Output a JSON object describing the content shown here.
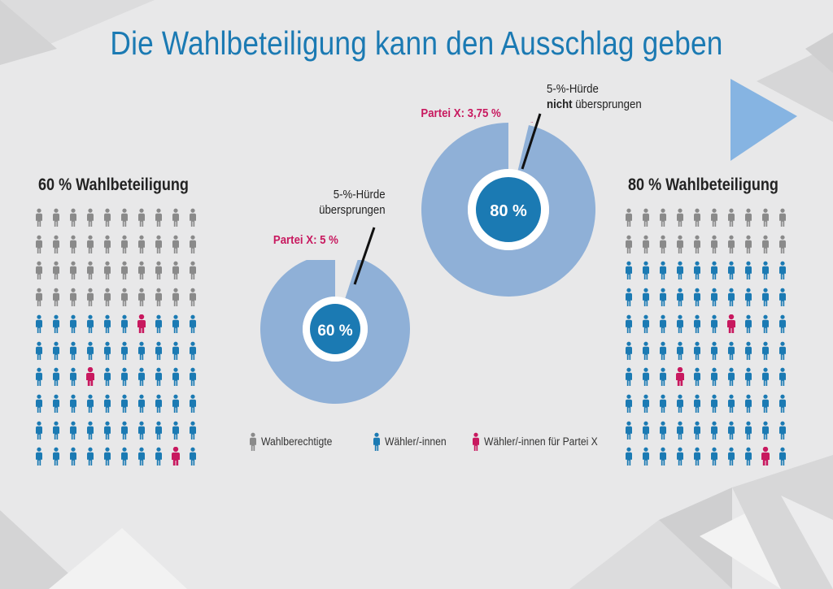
{
  "title": "Die Wahlbeteiligung kann den Ausschlag geben",
  "colors": {
    "eligible": "#8a8a8a",
    "voter": "#1b7ab3",
    "party_x": "#c8195f",
    "ring": "#8fb0d7",
    "center": "#1b7ab3"
  },
  "chart_data": [
    {
      "type": "pictogram",
      "title": "60 % Wahlbeteiligung",
      "grid": {
        "rows": 10,
        "cols": 10
      },
      "total": 100,
      "eligible_non_voters": 40,
      "voters": 60,
      "party_x_voters": 3,
      "party_x_positions": [
        [
          4,
          6
        ],
        [
          6,
          3
        ],
        [
          9,
          8
        ]
      ]
    },
    {
      "type": "pie",
      "turnout_label": "60 %",
      "slices": [
        {
          "label": "Partei X: 5 %",
          "value": 5
        },
        {
          "label": "",
          "value": 95
        }
      ],
      "annotation": {
        "line1": "5-%-Hürde",
        "line2": "übersprungen"
      }
    },
    {
      "type": "pie",
      "turnout_label": "80 %",
      "slices": [
        {
          "label": "Partei X: 3,75 %",
          "value": 3.75
        },
        {
          "label": "",
          "value": 96.25
        }
      ],
      "annotation": {
        "line1": "5-%-Hürde",
        "line2_bold": "nicht",
        "line2_rest": " übersprungen"
      }
    },
    {
      "type": "pictogram",
      "title": "80 % Wahlbeteiligung",
      "grid": {
        "rows": 10,
        "cols": 10
      },
      "total": 100,
      "eligible_non_voters": 20,
      "voters": 80,
      "party_x_voters": 3,
      "party_x_positions": [
        [
          4,
          6
        ],
        [
          6,
          3
        ],
        [
          9,
          8
        ]
      ]
    }
  ],
  "legend": [
    {
      "label": "Wahlberechtigte",
      "icon": "person-icon-gray"
    },
    {
      "label": "Wähler/-innen",
      "icon": "person-icon-blue"
    },
    {
      "label": "Wähler/-innen für Partei X",
      "icon": "person-icon-pink"
    }
  ]
}
